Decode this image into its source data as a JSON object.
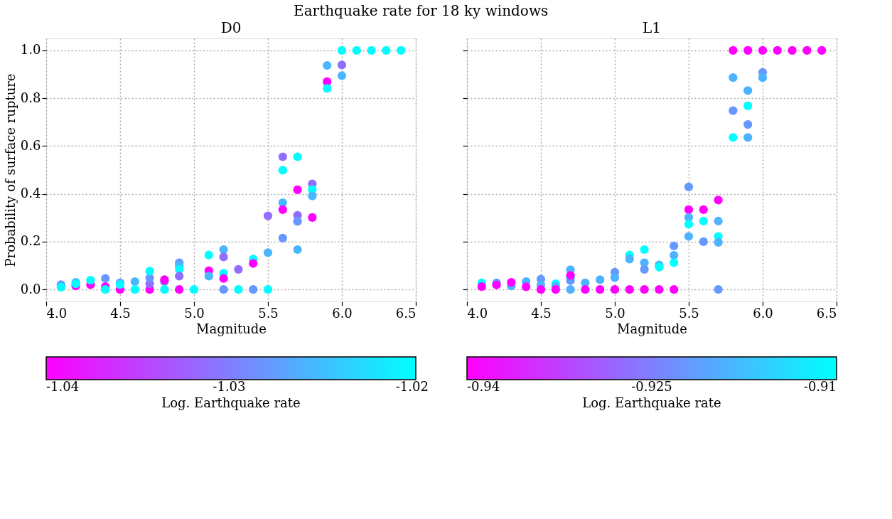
{
  "chart_data": [
    {
      "type": "scatter",
      "title": "D0",
      "xlabel": "Magnitude",
      "ylabel": "Probability of surface rupture",
      "clabel": "Log. Earthquake rate",
      "annotations": [
        "Earthquake rate for 18 ky windows"
      ],
      "x": [
        4.1,
        4.1,
        4.2,
        4.2,
        4.2,
        4.3,
        4.3,
        4.4,
        4.4,
        4.4,
        4.5,
        4.5,
        4.5,
        4.6,
        4.6,
        4.7,
        4.7,
        4.7,
        4.7,
        4.8,
        4.8,
        4.8,
        4.9,
        4.9,
        4.9,
        4.9,
        4.9,
        5.0,
        5.1,
        5.1,
        5.1,
        5.2,
        5.2,
        5.2,
        5.2,
        5.2,
        5.3,
        5.3,
        5.4,
        5.4,
        5.4,
        5.5,
        5.5,
        5.5,
        5.6,
        5.6,
        5.6,
        5.6,
        5.6,
        5.7,
        5.7,
        5.7,
        5.7,
        5.7,
        5.8,
        5.8,
        5.8,
        5.8,
        5.9,
        5.9,
        5.9,
        6.0,
        6.0,
        6.0,
        6.1,
        6.2,
        6.3,
        6.4
      ],
      "values": [
        0.02,
        0.01,
        0.015,
        0.03,
        0.024,
        0.02,
        0.039,
        0.046,
        0.012,
        0,
        0,
        0.028,
        0.021,
        0.033,
        0,
        0,
        0.024,
        0.048,
        0.077,
        0.033,
        0.041,
        0,
        0.112,
        0.099,
        0.084,
        0.056,
        0,
        0,
        0.144,
        0.078,
        0.056,
        0.167,
        0.136,
        0.068,
        0.046,
        0,
        0.084,
        0,
        0.127,
        0.109,
        0,
        0.154,
        0.308,
        0,
        0.555,
        0.499,
        0.363,
        0.334,
        0.215,
        0.555,
        0.417,
        0.31,
        0.285,
        0.167,
        0.442,
        0.418,
        0.391,
        0.301,
        0.937,
        0.869,
        0.841,
        1.0,
        0.939,
        0.894,
        1.0,
        1.0,
        1.0,
        1.0
      ],
      "cvalues": [
        -1.028,
        -1.02,
        -1.04,
        -1.0256,
        -1.02,
        -1.04,
        -1.02,
        -1.028,
        -1.04,
        -1.02,
        -1.04,
        -1.028,
        -1.02,
        -1.0256,
        -1.02,
        -1.04,
        -1.0313,
        -1.028,
        -1.02,
        -1.0313,
        -1.04,
        -1.02,
        -1.028,
        -1.0256,
        -1.02,
        -1.0313,
        -1.04,
        -1.02,
        -1.02,
        -1.04,
        -1.0256,
        -1.0256,
        -1.0313,
        -1.02,
        -1.04,
        -1.028,
        -1.0313,
        -1.02,
        -1.02,
        -1.04,
        -1.028,
        -1.0256,
        -1.0313,
        -1.02,
        -1.0313,
        -1.02,
        -1.0256,
        -1.04,
        -1.028,
        -1.02,
        -1.04,
        -1.0313,
        -1.028,
        -1.0256,
        -1.0313,
        -1.02,
        -1.0256,
        -1.04,
        -1.0256,
        -1.04,
        -1.02,
        -1.02,
        -1.0313,
        -1.0256,
        -1.02,
        -1.02,
        -1.02,
        -1.02
      ],
      "clim": [
        -1.04,
        -1.0198
      ],
      "cticks": [
        -1.04,
        -1.03,
        -1.02
      ],
      "xlim": [
        4.0,
        6.5
      ],
      "xticks": [
        {
          "value": 4,
          "label": "4.0"
        },
        4.5,
        {
          "value": 5,
          "label": "5.0"
        },
        5.5,
        {
          "value": 6,
          "label": "6.0"
        },
        6.5
      ],
      "ylim": [
        -0.05,
        1.05
      ],
      "yticks": [
        {
          "value": 0,
          "label": "0.0"
        },
        0.2,
        0.4,
        0.6,
        0.8,
        {
          "value": 1,
          "label": "1.0"
        }
      ],
      "grid": true,
      "marker": "circle"
    },
    {
      "type": "scatter",
      "title": "L1",
      "xlabel": "Magnitude",
      "clabel": "Log. Earthquake rate",
      "x": [
        4.1,
        4.1,
        4.2,
        4.2,
        4.3,
        4.3,
        4.4,
        4.4,
        4.5,
        4.5,
        4.5,
        4.6,
        4.6,
        4.6,
        4.7,
        4.7,
        4.7,
        4.7,
        4.7,
        4.8,
        4.8,
        4.9,
        4.9,
        5.0,
        5.0,
        5.0,
        5.1,
        5.1,
        5.1,
        5.2,
        5.2,
        5.2,
        5.2,
        5.3,
        5.3,
        5.3,
        5.4,
        5.4,
        5.4,
        5.4,
        5.5,
        5.5,
        5.5,
        5.5,
        5.5,
        5.6,
        5.6,
        5.6,
        5.7,
        5.7,
        5.7,
        5.7,
        5.7,
        5.8,
        5.8,
        5.8,
        5.8,
        5.9,
        5.9,
        5.9,
        5.9,
        5.9,
        6.0,
        6.0,
        6.0,
        6.1,
        6.2,
        6.3,
        6.4
      ],
      "values": [
        0.028,
        0.012,
        0.028,
        0.019,
        0.015,
        0.03,
        0.033,
        0.011,
        0.043,
        0.019,
        0,
        0.024,
        0.013,
        0,
        0.083,
        0.05,
        0.037,
        0.059,
        0,
        0.028,
        0,
        0.041,
        0,
        0.072,
        0.05,
        0,
        0.144,
        0.127,
        0,
        0.167,
        0.112,
        0.084,
        0,
        0.103,
        0.094,
        0,
        0.182,
        0.143,
        0.112,
        0,
        0.429,
        0.334,
        0.301,
        0.273,
        0.222,
        0.334,
        0.286,
        0.2,
        0.374,
        0.286,
        0.222,
        0.197,
        0,
        1.0,
        0.886,
        0.748,
        0.636,
        1.0,
        0.832,
        0.768,
        0.69,
        0.636,
        1.0,
        0.908,
        0.886,
        1.0,
        1.0,
        1.0,
        1.0
      ],
      "cvalues": [
        -0.91,
        -0.94,
        -0.922,
        -0.94,
        -0.919,
        -0.94,
        -0.919,
        -0.94,
        -0.922,
        -0.919,
        -0.94,
        -0.91,
        -0.919,
        -0.94,
        -0.919,
        -0.91,
        -0.922,
        -0.94,
        -0.919,
        -0.919,
        -0.94,
        -0.919,
        -0.94,
        -0.922,
        -0.919,
        -0.94,
        -0.91,
        -0.919,
        -0.94,
        -0.91,
        -0.919,
        -0.922,
        -0.94,
        -0.919,
        -0.91,
        -0.94,
        -0.922,
        -0.919,
        -0.91,
        -0.94,
        -0.922,
        -0.94,
        -0.919,
        -0.91,
        -0.919,
        -0.94,
        -0.91,
        -0.922,
        -0.94,
        -0.919,
        -0.91,
        -0.919,
        -0.922,
        -0.94,
        -0.919,
        -0.922,
        -0.91,
        -0.94,
        -0.919,
        -0.91,
        -0.922,
        -0.919,
        -0.94,
        -0.922,
        -0.919,
        -0.94,
        -0.94,
        -0.94,
        -0.94
      ],
      "clim": [
        -0.94,
        -0.91
      ],
      "cticks": [
        -0.94,
        -0.925,
        -0.91
      ],
      "xlim": [
        4.0,
        6.5
      ],
      "xticks": [
        {
          "value": 4,
          "label": "4.0"
        },
        4.5,
        {
          "value": 5,
          "label": "5.0"
        },
        5.5,
        {
          "value": 6,
          "label": "6.0"
        },
        6.5
      ],
      "ylim": [
        -0.05,
        1.05
      ],
      "yticks": [
        0,
        0.2,
        0.4,
        0.6,
        0.8,
        1
      ],
      "tick_labels": "x",
      "grid": true,
      "marker": "circle"
    }
  ]
}
